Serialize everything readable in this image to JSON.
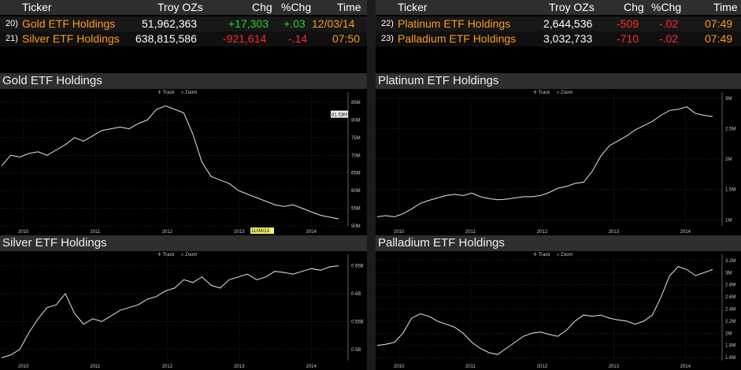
{
  "table_left": {
    "headers": {
      "ticker": "Ticker",
      "oz": "Troy OZs",
      "chg": "Chg",
      "pct": "%Chg",
      "time": "Time"
    },
    "rows": [
      {
        "num": "20)",
        "name": "Gold ETF Holdings",
        "oz": "51,962,363",
        "chg": "+17,303",
        "pct": "+.03",
        "time": "12/03/14",
        "chg_color": "#2bd12b"
      },
      {
        "num": "21)",
        "name": "Silver ETF Holdings",
        "oz": "638,815,586",
        "chg": "-921,614",
        "pct": "-.14",
        "time": "07:50",
        "chg_color": "#ff2a2a"
      }
    ]
  },
  "table_right": {
    "headers": {
      "ticker": "Ticker",
      "oz": "Troy OZs",
      "chg": "Chg",
      "pct": "%Chg",
      "time": "Time"
    },
    "rows": [
      {
        "num": "22)",
        "name": "Platinum ETF Holdings",
        "oz": "2,644,536",
        "chg": "-509",
        "pct": "-.02",
        "time": "07:49",
        "chg_color": "#ff2a2a"
      },
      {
        "num": "23)",
        "name": "Palladium ETF Holdings",
        "oz": "3,032,733",
        "chg": "-710",
        "pct": "-.02",
        "time": "07:49",
        "chg_color": "#ff2a2a"
      }
    ]
  },
  "controls": {
    "track": "Track",
    "zoom": "Zoom"
  },
  "chart_data": [
    {
      "type": "line",
      "title": "Gold ETF Holdings",
      "x_ticks": [
        "2010",
        "2011",
        "2012",
        "2013",
        "2014"
      ],
      "y_ticks": [
        "85M",
        "80M",
        "75M",
        "70M",
        "65M",
        "60M",
        "55M",
        "50M"
      ],
      "ylim": [
        50,
        87
      ],
      "highlight_label": "81.53M",
      "cursor_label": "11/08/13",
      "series": [
        {
          "values": [
            67,
            70,
            69.5,
            70.5,
            71,
            70,
            71.5,
            73,
            75,
            74,
            75.5,
            77,
            77.5,
            78,
            77.5,
            79,
            80,
            83,
            84,
            83,
            82,
            76,
            68,
            64,
            63,
            62,
            60,
            59,
            58,
            57,
            56,
            55.5,
            56,
            55,
            54,
            53,
            52.5,
            52
          ]
        }
      ]
    },
    {
      "type": "line",
      "title": "Platinum ETF Holdings",
      "x_ticks": [
        "2010",
        "2011",
        "2012",
        "2013",
        "2014"
      ],
      "y_ticks": [
        "3M",
        "2.5M",
        "2M",
        "1.5M",
        "1M"
      ],
      "ylim": [
        0.9,
        3.05
      ],
      "series": [
        {
          "values": [
            1.05,
            1.07,
            1.05,
            1.1,
            1.18,
            1.27,
            1.32,
            1.36,
            1.4,
            1.42,
            1.4,
            1.44,
            1.38,
            1.35,
            1.33,
            1.34,
            1.36,
            1.38,
            1.38,
            1.4,
            1.45,
            1.52,
            1.55,
            1.6,
            1.62,
            1.8,
            2.05,
            2.22,
            2.3,
            2.38,
            2.48,
            2.55,
            2.62,
            2.72,
            2.8,
            2.82,
            2.86,
            2.75,
            2.72,
            2.7
          ]
        }
      ]
    },
    {
      "type": "line",
      "title": "Silver ETF Holdings",
      "x_ticks": [
        "2010",
        "2011",
        "2012",
        "2013",
        "2014"
      ],
      "y_ticks": [
        "0.65B",
        "0.6B",
        "0.55B",
        "0.5B"
      ],
      "ylim": [
        0.48,
        0.665
      ],
      "series": [
        {
          "values": [
            0.485,
            0.49,
            0.5,
            0.53,
            0.555,
            0.575,
            0.58,
            0.6,
            0.565,
            0.545,
            0.555,
            0.55,
            0.56,
            0.57,
            0.575,
            0.58,
            0.59,
            0.595,
            0.605,
            0.61,
            0.625,
            0.62,
            0.63,
            0.615,
            0.61,
            0.625,
            0.63,
            0.635,
            0.625,
            0.63,
            0.64,
            0.638,
            0.635,
            0.64,
            0.645,
            0.642,
            0.648,
            0.65
          ]
        }
      ]
    },
    {
      "type": "line",
      "title": "Palladium ETF Holdings",
      "x_ticks": [
        "2010",
        "2011",
        "2012",
        "2013",
        "2014"
      ],
      "y_ticks": [
        "3.2M",
        "3M",
        "2.8M",
        "2.6M",
        "2.4M",
        "2.2M",
        "2M",
        "1.8M",
        "1.6M"
      ],
      "ylim": [
        1.55,
        3.25
      ],
      "series": [
        {
          "values": [
            1.8,
            1.82,
            1.85,
            2.0,
            2.25,
            2.32,
            2.28,
            2.2,
            2.15,
            2.1,
            2.0,
            1.85,
            1.75,
            1.68,
            1.65,
            1.75,
            1.85,
            1.95,
            2.0,
            2.02,
            1.98,
            1.95,
            2.05,
            2.2,
            2.3,
            2.28,
            2.3,
            2.25,
            2.22,
            2.2,
            2.15,
            2.2,
            2.3,
            2.6,
            2.95,
            3.1,
            3.05,
            2.95,
            3.0,
            3.05
          ]
        }
      ]
    }
  ]
}
